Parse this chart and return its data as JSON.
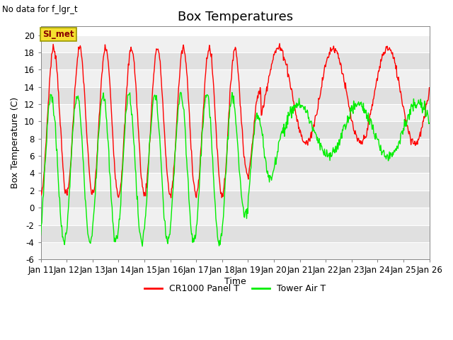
{
  "title": "Box Temperatures",
  "no_data_text": "No data for f_lgr_t",
  "si_met_label": "SI_met",
  "ylabel": "Box Temperature (C)",
  "xlabel": "Time",
  "ylim": [
    -6,
    21
  ],
  "yticks": [
    -6,
    -4,
    -2,
    0,
    2,
    4,
    6,
    8,
    10,
    12,
    14,
    16,
    18,
    20
  ],
  "x_tick_labels": [
    "Jan 11",
    "Jan 12",
    "Jan 13",
    "Jan 14",
    "Jan 15",
    "Jan 16",
    "Jan 17",
    "Jan 18",
    "Jan 19",
    "Jan 20",
    "Jan 21",
    "Jan 22",
    "Jan 23",
    "Jan 24",
    "Jan 25",
    "Jan 26"
  ],
  "bg_color": "#ffffff",
  "plot_bg_color": "#ffffff",
  "stripe_light": "#f0f0f0",
  "stripe_dark": "#e0e0e0",
  "line_color_red": "#ff0000",
  "line_color_green": "#00ee00",
  "legend_label_red": "CR1000 Panel T",
  "legend_label_green": "Tower Air T",
  "title_fontsize": 13,
  "label_fontsize": 9,
  "tick_fontsize": 8.5
}
